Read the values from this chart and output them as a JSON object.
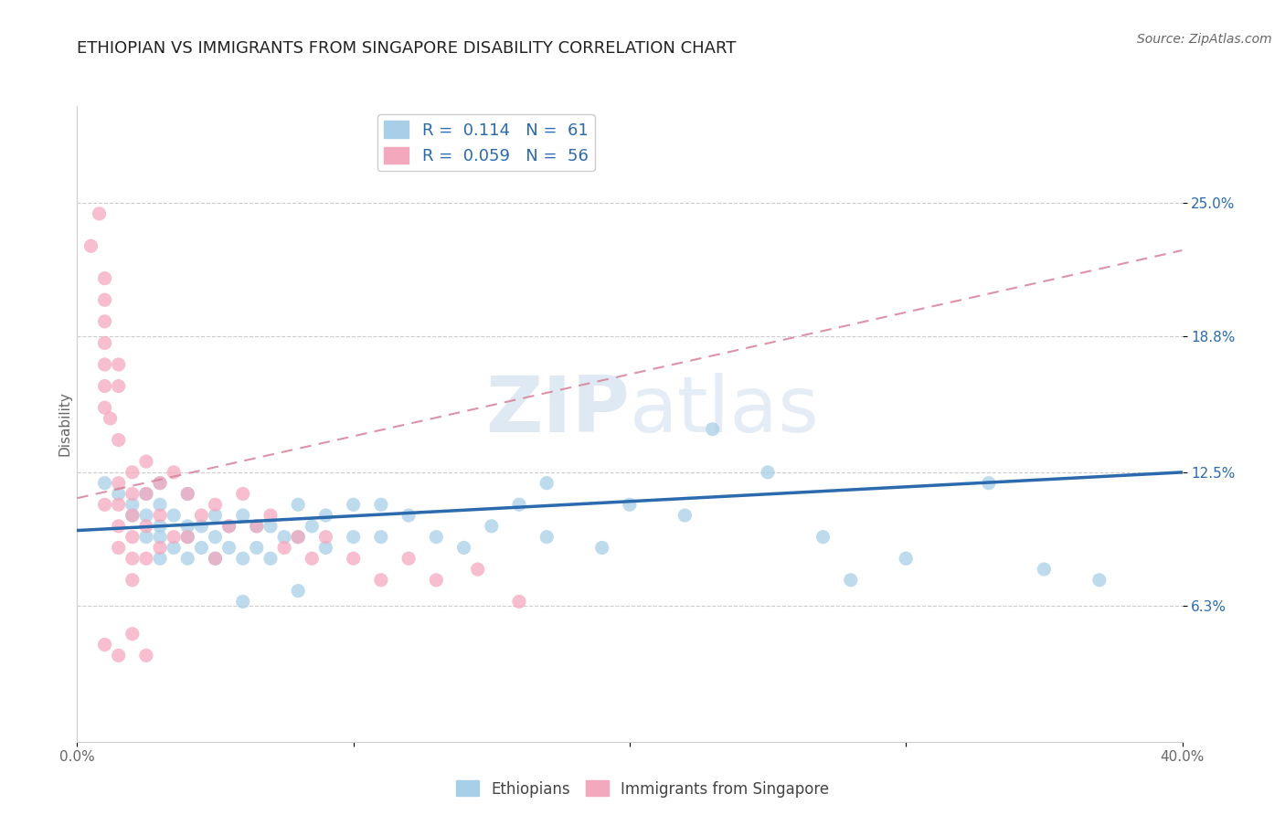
{
  "title": "ETHIOPIAN VS IMMIGRANTS FROM SINGAPORE DISABILITY CORRELATION CHART",
  "source": "Source: ZipAtlas.com",
  "ylabel": "Disability",
  "xlim": [
    0.0,
    0.4
  ],
  "ylim": [
    0.0,
    0.295
  ],
  "yticks": [
    0.063,
    0.125,
    0.188,
    0.25
  ],
  "ytick_labels": [
    "6.3%",
    "12.5%",
    "18.8%",
    "25.0%"
  ],
  "xticks": [
    0.0,
    0.1,
    0.2,
    0.3,
    0.4
  ],
  "xtick_labels": [
    "0.0%",
    "",
    "",
    "",
    "40.0%"
  ],
  "legend_R1": "R =  0.114",
  "legend_N1": "N =  61",
  "legend_R2": "R =  0.059",
  "legend_N2": "N =  56",
  "blue_color": "#a8cfe8",
  "pink_color": "#f4a8be",
  "blue_line_color": "#2a6aad",
  "pink_line_color": "#d88098",
  "watermark_zip": "ZIP",
  "watermark_atlas": "atlas",
  "blue_scatter_x": [
    0.01,
    0.015,
    0.02,
    0.02,
    0.025,
    0.025,
    0.025,
    0.03,
    0.03,
    0.03,
    0.03,
    0.03,
    0.035,
    0.035,
    0.04,
    0.04,
    0.04,
    0.04,
    0.045,
    0.045,
    0.05,
    0.05,
    0.05,
    0.055,
    0.055,
    0.06,
    0.06,
    0.065,
    0.065,
    0.07,
    0.07,
    0.075,
    0.08,
    0.08,
    0.085,
    0.09,
    0.09,
    0.1,
    0.1,
    0.11,
    0.11,
    0.12,
    0.13,
    0.14,
    0.15,
    0.17,
    0.17,
    0.19,
    0.2,
    0.22,
    0.23,
    0.25,
    0.27,
    0.28,
    0.3,
    0.33,
    0.35,
    0.37,
    0.16,
    0.08,
    0.06
  ],
  "blue_scatter_y": [
    0.12,
    0.115,
    0.105,
    0.11,
    0.095,
    0.105,
    0.115,
    0.085,
    0.095,
    0.1,
    0.11,
    0.12,
    0.09,
    0.105,
    0.085,
    0.095,
    0.1,
    0.115,
    0.09,
    0.1,
    0.085,
    0.095,
    0.105,
    0.09,
    0.1,
    0.085,
    0.105,
    0.09,
    0.1,
    0.085,
    0.1,
    0.095,
    0.095,
    0.11,
    0.1,
    0.09,
    0.105,
    0.095,
    0.11,
    0.095,
    0.11,
    0.105,
    0.095,
    0.09,
    0.1,
    0.12,
    0.095,
    0.09,
    0.11,
    0.105,
    0.145,
    0.125,
    0.095,
    0.075,
    0.085,
    0.12,
    0.08,
    0.075,
    0.11,
    0.07,
    0.065
  ],
  "pink_scatter_x": [
    0.005,
    0.008,
    0.01,
    0.01,
    0.01,
    0.01,
    0.01,
    0.01,
    0.01,
    0.01,
    0.012,
    0.015,
    0.015,
    0.015,
    0.015,
    0.015,
    0.015,
    0.015,
    0.02,
    0.02,
    0.02,
    0.02,
    0.02,
    0.02,
    0.025,
    0.025,
    0.025,
    0.025,
    0.03,
    0.03,
    0.03,
    0.035,
    0.035,
    0.04,
    0.04,
    0.045,
    0.05,
    0.05,
    0.055,
    0.06,
    0.065,
    0.07,
    0.075,
    0.08,
    0.085,
    0.09,
    0.1,
    0.11,
    0.12,
    0.13,
    0.145,
    0.16,
    0.02,
    0.025,
    0.015,
    0.01
  ],
  "pink_scatter_y": [
    0.23,
    0.245,
    0.215,
    0.205,
    0.195,
    0.185,
    0.175,
    0.165,
    0.155,
    0.11,
    0.15,
    0.14,
    0.165,
    0.175,
    0.12,
    0.11,
    0.1,
    0.09,
    0.125,
    0.115,
    0.105,
    0.095,
    0.085,
    0.075,
    0.13,
    0.115,
    0.1,
    0.085,
    0.12,
    0.105,
    0.09,
    0.125,
    0.095,
    0.115,
    0.095,
    0.105,
    0.11,
    0.085,
    0.1,
    0.115,
    0.1,
    0.105,
    0.09,
    0.095,
    0.085,
    0.095,
    0.085,
    0.075,
    0.085,
    0.075,
    0.08,
    0.065,
    0.05,
    0.04,
    0.04,
    0.045
  ],
  "blue_trend_x": [
    0.0,
    0.4
  ],
  "blue_trend_y": [
    0.098,
    0.125
  ],
  "pink_trend_x": [
    0.0,
    0.4
  ],
  "pink_trend_y": [
    0.113,
    0.228
  ],
  "grid_color": "#cccccc",
  "background_color": "#ffffff",
  "title_fontsize": 13,
  "axis_label_fontsize": 11,
  "tick_fontsize": 11,
  "legend_fontsize": 13
}
